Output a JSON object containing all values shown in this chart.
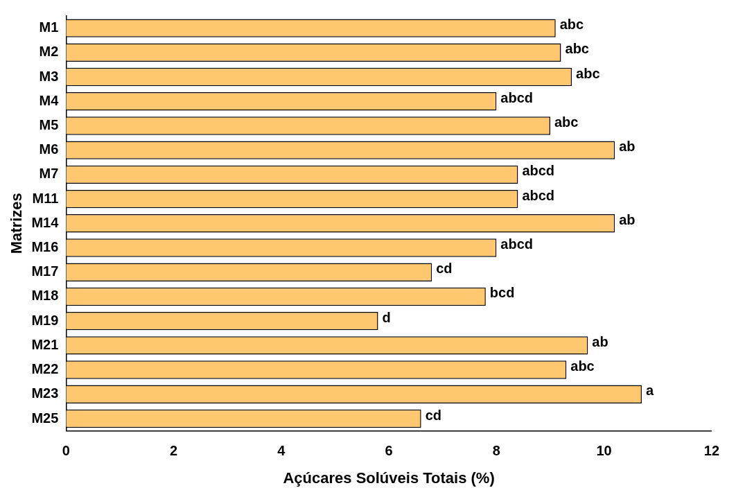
{
  "chart_data": {
    "type": "bar",
    "orientation": "horizontal",
    "xlabel": "Açúcares Solúveis Totais (%)",
    "ylabel": "Matrizes",
    "categories": [
      "M1",
      "M2",
      "M3",
      "M4",
      "M5",
      "M6",
      "M7",
      "M11",
      "M14",
      "M16",
      "M17",
      "M18",
      "M19",
      "M21",
      "M22",
      "M23",
      "M25"
    ],
    "values": [
      9.1,
      9.2,
      9.4,
      8.0,
      9.0,
      10.2,
      8.4,
      8.4,
      10.2,
      8.0,
      6.8,
      7.8,
      5.8,
      9.7,
      9.3,
      10.7,
      6.6
    ],
    "value_labels": [
      "abc",
      "abc",
      "abc",
      "abcd",
      "abc",
      "ab",
      "abcd",
      "abcd",
      "ab",
      "abcd",
      "cd",
      "bcd",
      "d",
      "ab",
      "abc",
      "a",
      "cd"
    ],
    "color": "#ffc870",
    "xlim": [
      0,
      12
    ],
    "xticks": [
      0,
      2,
      4,
      6,
      8,
      10,
      12
    ],
    "grid": false,
    "legend": false
  }
}
